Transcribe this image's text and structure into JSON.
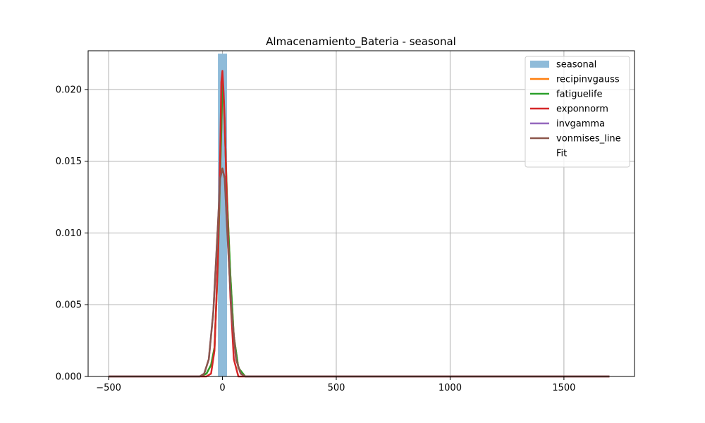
{
  "chart_data": {
    "type": "line",
    "title": "Almacenamiento_Bateria - seasonal",
    "xlabel": "",
    "ylabel": "",
    "xlim": [
      -590,
      1810
    ],
    "ylim": [
      0,
      0.0227
    ],
    "x_ticks": [
      -500,
      0,
      500,
      1000,
      1500
    ],
    "x_tick_labels": [
      "−500",
      "0",
      "500",
      "1000",
      "1500"
    ],
    "y_ticks": [
      0,
      0.005,
      0.01,
      0.015,
      0.02
    ],
    "y_tick_labels": [
      "0.000",
      "0.005",
      "0.010",
      "0.015",
      "0.020"
    ],
    "grid": true,
    "legend_position": "top-right",
    "histogram": {
      "name": "seasonal",
      "color": "#8fbbd9",
      "bins": [
        {
          "x0": -20,
          "x1": 20,
          "value": 0.0225
        }
      ]
    },
    "series": [
      {
        "name": "recipinvgauss",
        "color": "#ff7f0e",
        "x": [
          -500,
          -100,
          -70,
          -50,
          -35,
          -20,
          -10,
          -5,
          0,
          5,
          10,
          20,
          35,
          50,
          70,
          100,
          1700
        ],
        "y": [
          0,
          0,
          0.0002,
          0.0008,
          0.002,
          0.0078,
          0.0142,
          0.0172,
          0.0205,
          0.0195,
          0.0175,
          0.0125,
          0.007,
          0.0028,
          0.0006,
          0,
          0
        ]
      },
      {
        "name": "fatiguelife",
        "color": "#2ca02c",
        "x": [
          -500,
          -100,
          -70,
          -50,
          -35,
          -20,
          -10,
          -5,
          0,
          5,
          10,
          20,
          35,
          50,
          70,
          100,
          1700
        ],
        "y": [
          0,
          0,
          0.0002,
          0.0008,
          0.002,
          0.0078,
          0.0142,
          0.0172,
          0.0205,
          0.0195,
          0.0175,
          0.0125,
          0.007,
          0.0028,
          0.0006,
          0,
          0
        ]
      },
      {
        "name": "exponnorm",
        "color": "#d62728",
        "x": [
          -500,
          -70,
          -50,
          -35,
          -20,
          -10,
          -5,
          0,
          5,
          10,
          20,
          35,
          50,
          70,
          1700
        ],
        "y": [
          0,
          0,
          0.0002,
          0.0018,
          0.0082,
          0.0155,
          0.0205,
          0.0213,
          0.0198,
          0.0178,
          0.0118,
          0.0055,
          0.0012,
          0,
          0
        ]
      },
      {
        "name": "invgamma",
        "color": "#9467bd",
        "x": [
          -500,
          -100,
          -80,
          -60,
          -40,
          -20,
          -10,
          0,
          10,
          20,
          40,
          60,
          80,
          100,
          1700
        ],
        "y": [
          0,
          0,
          0.0002,
          0.0012,
          0.0045,
          0.0105,
          0.0138,
          0.0145,
          0.0138,
          0.0105,
          0.0045,
          0.0012,
          0.0002,
          0,
          0
        ]
      },
      {
        "name": "vonmises_line",
        "color": "#8c564b",
        "x": [
          -500,
          -100,
          -80,
          -60,
          -40,
          -20,
          -10,
          0,
          10,
          20,
          40,
          60,
          80,
          100,
          1700
        ],
        "y": [
          0,
          0,
          0.0002,
          0.0012,
          0.0045,
          0.0105,
          0.0138,
          0.0145,
          0.0138,
          0.0105,
          0.0045,
          0.0012,
          0.0002,
          0,
          0
        ]
      }
    ],
    "legend_entries": [
      {
        "label": "seasonal",
        "kind": "patch",
        "color": "#8fbbd9"
      },
      {
        "label": "recipinvgauss",
        "kind": "line",
        "color": "#ff7f0e"
      },
      {
        "label": "fatiguelife",
        "kind": "line",
        "color": "#2ca02c"
      },
      {
        "label": "exponnorm",
        "kind": "line",
        "color": "#d62728"
      },
      {
        "label": "invgamma",
        "kind": "line",
        "color": "#9467bd"
      },
      {
        "label": "vonmises_line",
        "kind": "line",
        "color": "#8c564b"
      },
      {
        "label": "Fit",
        "kind": "none",
        "color": "#ffffff"
      }
    ]
  }
}
